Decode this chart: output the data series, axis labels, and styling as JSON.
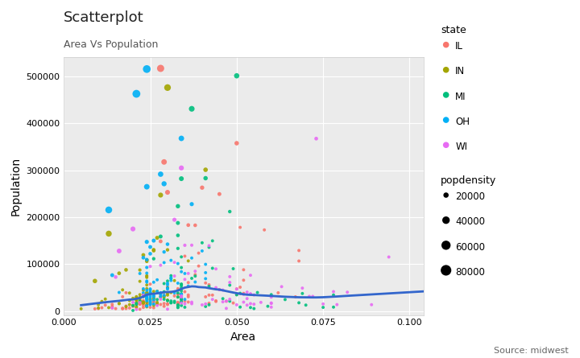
{
  "title": "Scatterplot",
  "subtitle": "Area Vs Population",
  "xlabel": "Area",
  "ylabel": "Population",
  "source_text": "Source: midwest",
  "xlim": [
    0.0,
    0.104
  ],
  "ylim": [
    -8000,
    540000
  ],
  "state_colors": {
    "IL": "#F8766D",
    "IN": "#A3A500",
    "MI": "#00BF7D",
    "OH": "#00B0F6",
    "WI": "#E76BF3"
  },
  "legend_sizes": [
    20000,
    40000,
    60000,
    80000
  ],
  "background_color": "#ffffff",
  "panel_background": "#ebebeb",
  "grid_color": "#ffffff",
  "states": [
    "IL",
    "IN",
    "MI",
    "OH",
    "WI"
  ]
}
